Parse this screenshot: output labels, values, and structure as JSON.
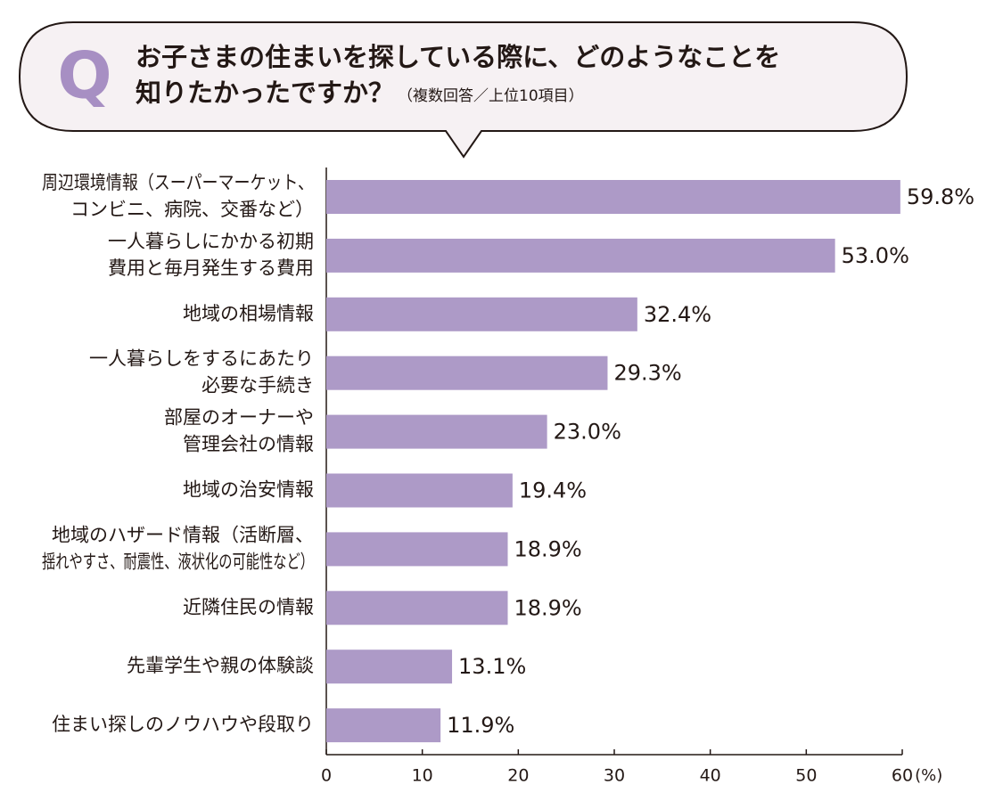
{
  "chart_data": {
    "type": "bar",
    "orientation": "horizontal",
    "question_mark": "Q",
    "title": [
      "お子さまの住まいを探している際に、どのようなことを",
      "知りたかったですか？"
    ],
    "subtitle": "（複数回答／上位10項目）",
    "xlabel": "(%)",
    "categories": [
      [
        "周辺環境情報（スーパーマーケット、",
        "コンビニ、病院、交番など）"
      ],
      [
        "一人暮らしにかかる初期",
        "費用と毎月発生する費用"
      ],
      [
        "地域の相場情報"
      ],
      [
        "一人暮らしをするにあたり",
        "必要な手続き"
      ],
      [
        "部屋のオーナーや",
        "管理会社の情報"
      ],
      [
        "地域の治安情報"
      ],
      [
        "地域のハザード情報（活断層、",
        "揺れやすさ、耐震性、液状化の可能性など）"
      ],
      [
        "近隣住民の情報"
      ],
      [
        "先輩学生や親の体験談"
      ],
      [
        "住まい探しのノウハウや段取り"
      ]
    ],
    "values": [
      59.8,
      53.0,
      32.4,
      29.3,
      23.0,
      19.4,
      18.9,
      18.9,
      13.1,
      11.9
    ],
    "value_labels": [
      "59.8%",
      "53.0%",
      "32.4%",
      "29.3%",
      "23.0%",
      "19.4%",
      "18.9%",
      "18.9%",
      "13.1%",
      "11.9%"
    ],
    "color": "#ad9ac7",
    "xlim": [
      0,
      60
    ],
    "xticks": [
      0,
      10,
      20,
      30,
      40,
      50,
      60
    ],
    "grid": false
  }
}
